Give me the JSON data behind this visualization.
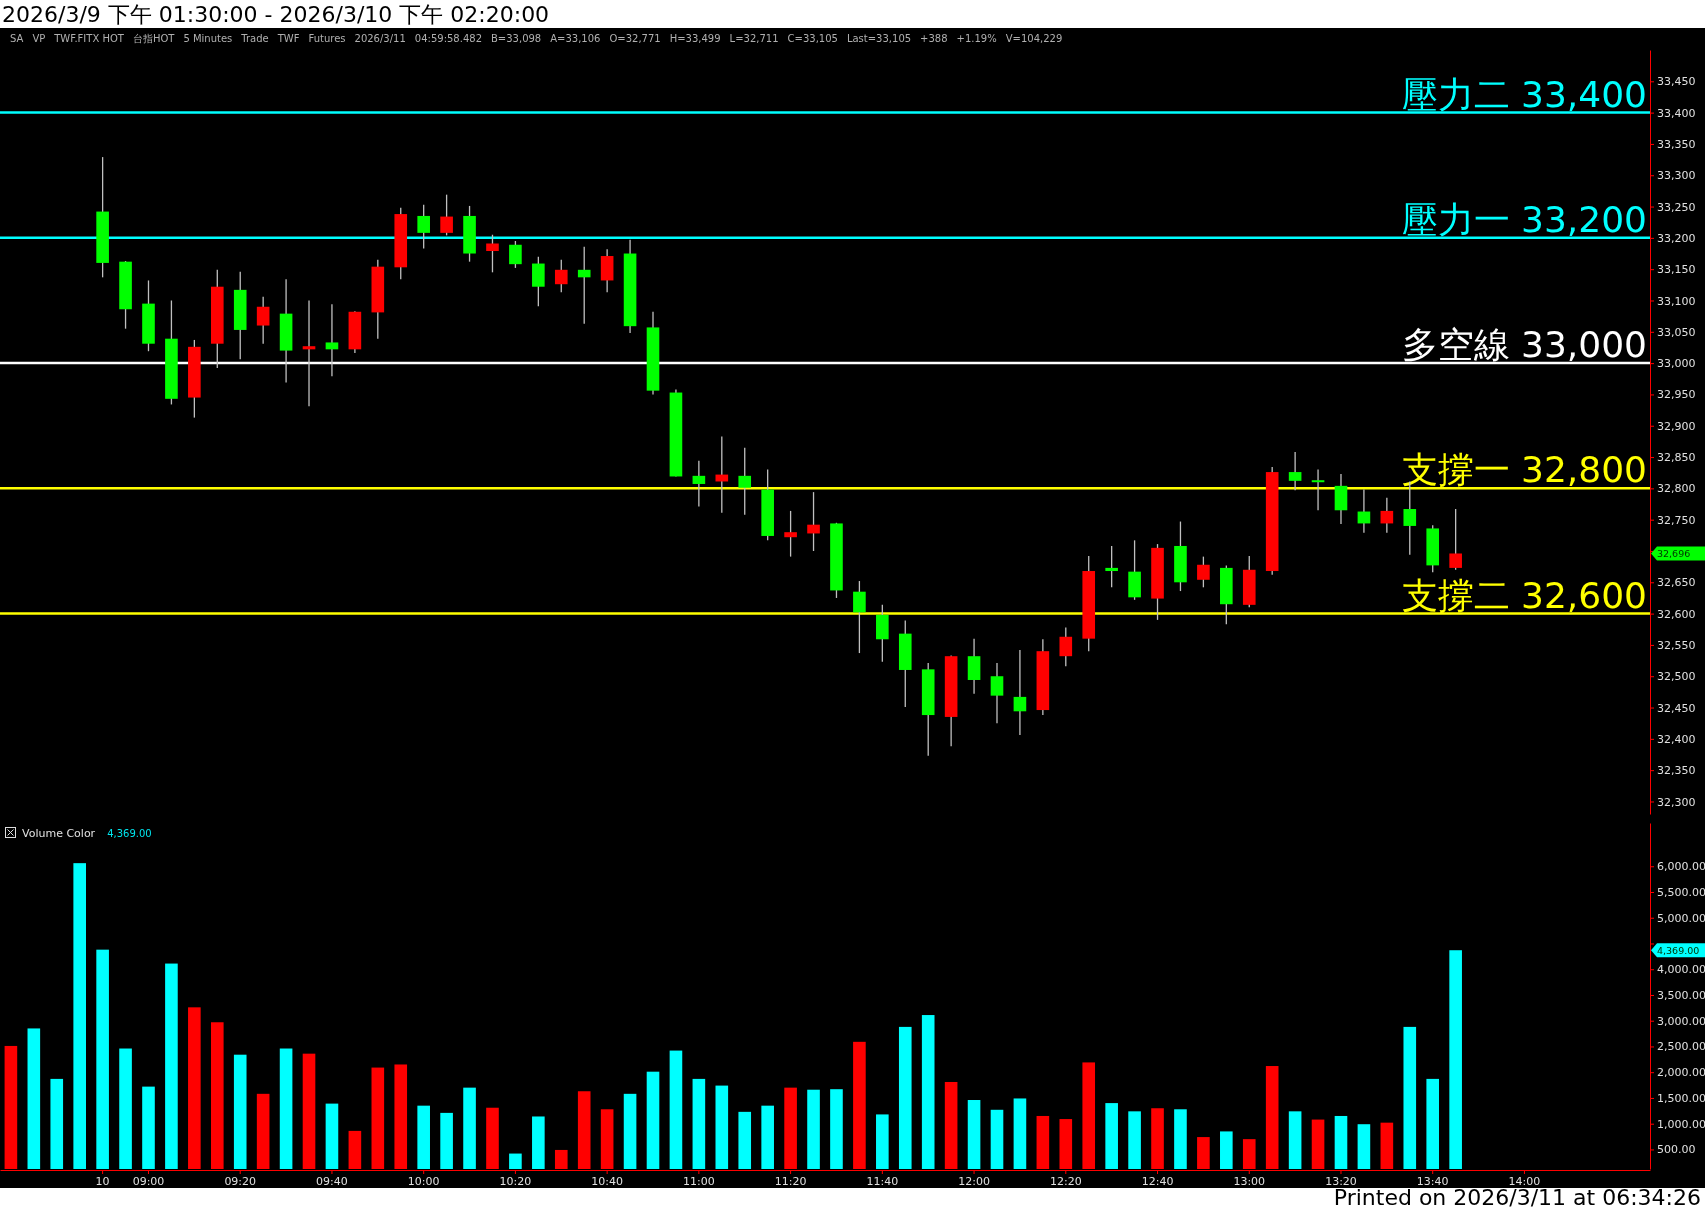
{
  "chart_data": [
    {
      "type": "candlestick",
      "title": "2026/3/9 下午 01:30:00 - 2026/3/10 下午 02:20:00",
      "annotations": [
        "SA",
        "VP",
        "TWF.FITX HOT",
        "台指HOT",
        "5 Minutes",
        "Trade",
        "TWF",
        "Futures",
        "2026/3/11",
        "04:59:58.482",
        "B=33,098",
        "A=33,106",
        "O=32,771",
        "H=33,499",
        "L=32,711",
        "C=33,105",
        "Last=33,105",
        "+388",
        "+1.19%",
        "V=104,229",
        "32,696"
      ],
      "categories": [
        null,
        null,
        null,
        null,
        null,
        null,
        null,
        null,
        null,
        null,
        null,
        null,
        null,
        null,
        null,
        null,
        null,
        null,
        null,
        null,
        null,
        null,
        null,
        null,
        null,
        null,
        null,
        null,
        null,
        null,
        null,
        null,
        null,
        null,
        null,
        null,
        null,
        null,
        null,
        null,
        null,
        null,
        null,
        null,
        null,
        null,
        null,
        null,
        null,
        null,
        null,
        null,
        null,
        null,
        null,
        null,
        null,
        null,
        null,
        null,
        null,
        null,
        null,
        null,
        null,
        null,
        null,
        null,
        null,
        null,
        null,
        null
      ],
      "ohlc": [
        null,
        null,
        null,
        null,
        [
          33242,
          33329,
          33137,
          33160
        ],
        [
          33162,
          33163,
          33055,
          33086
        ],
        [
          33095,
          33132,
          33019,
          33031
        ],
        [
          33039,
          33100,
          32934,
          32943
        ],
        [
          32945,
          33037,
          32913,
          33026
        ],
        [
          33031,
          33149,
          32992,
          33122
        ],
        [
          33117,
          33146,
          33006,
          33053
        ],
        [
          33060,
          33106,
          33031,
          33090
        ],
        [
          33079,
          33134,
          32969,
          33020
        ],
        [
          33022,
          33100,
          32931,
          33027
        ],
        [
          33033,
          33094,
          32979,
          33022
        ],
        [
          33022,
          33083,
          33016,
          33082
        ],
        [
          33081,
          33165,
          33039,
          33154
        ],
        [
          33153,
          33248,
          33134,
          33238
        ],
        [
          33235,
          33253,
          33183,
          33208
        ],
        [
          33208,
          33269,
          33204,
          33234
        ],
        [
          33235,
          33251,
          33162,
          33175
        ],
        [
          33179,
          33205,
          33145,
          33191
        ],
        [
          33189,
          33195,
          33152,
          33158
        ],
        [
          33159,
          33170,
          33091,
          33122
        ],
        [
          33126,
          33165,
          33113,
          33149
        ],
        [
          33149,
          33186,
          33063,
          33137
        ],
        [
          33132,
          33182,
          33113,
          33171
        ],
        [
          33175,
          33197,
          33048,
          33059
        ],
        [
          33057,
          33082,
          32950,
          32956
        ],
        [
          32953,
          32958,
          32819,
          32819
        ],
        [
          32820,
          32844,
          32771,
          32807
        ],
        [
          32811,
          32883,
          32761,
          32822
        ],
        [
          32820,
          32865,
          32758,
          32801
        ],
        [
          32798,
          32830,
          32717,
          32724
        ],
        [
          32722,
          32764,
          32691,
          32730
        ],
        [
          32728,
          32794,
          32700,
          32742
        ],
        [
          32744,
          32745,
          32625,
          32637
        ],
        [
          32635,
          32652,
          32537,
          32602
        ],
        [
          32598,
          32614,
          32523,
          32559
        ],
        [
          32568,
          32589,
          32451,
          32510
        ],
        [
          32511,
          32521,
          32373,
          32438
        ],
        [
          32435,
          32533,
          32388,
          32532
        ],
        [
          32532,
          32560,
          32472,
          32494
        ],
        [
          32500,
          32521,
          32425,
          32469
        ],
        [
          32467,
          32542,
          32406,
          32444
        ],
        [
          32446,
          32559,
          32438,
          32540
        ],
        [
          32532,
          32578,
          32516,
          32563
        ],
        [
          32560,
          32692,
          32540,
          32668
        ],
        [
          32673,
          32708,
          32642,
          32668
        ],
        [
          32667,
          32717,
          32622,
          32626
        ],
        [
          32624,
          32711,
          32590,
          32705
        ],
        [
          32708,
          32747,
          32636,
          32650
        ],
        [
          32654,
          32691,
          32642,
          32678
        ],
        [
          32673,
          32677,
          32583,
          32615
        ],
        [
          32614,
          32692,
          32610,
          32670
        ],
        [
          32668,
          32834,
          32662,
          32826
        ],
        [
          32826,
          32858,
          32797,
          32812
        ],
        [
          32813,
          32830,
          32765,
          32811
        ],
        [
          32804,
          32823,
          32743,
          32765
        ],
        [
          32763,
          32798,
          32729,
          32744
        ],
        [
          32744,
          32785,
          32729,
          32764
        ],
        [
          32767,
          32811,
          32694,
          32740
        ],
        [
          32736,
          32741,
          32666,
          32677
        ],
        [
          32673,
          32767,
          32670,
          32696
        ],
        null,
        null,
        null,
        null,
        null,
        null,
        null,
        null
      ],
      "colors": [
        null,
        null,
        null,
        null,
        "#00ff00",
        "#00ff00",
        "#00ff00",
        "#00ff00",
        "#ff0000",
        "#ff0000",
        "#00ff00",
        "#ff0000",
        "#00ff00",
        "#ff0000",
        "#00ff00",
        "#ff0000",
        "#ff0000",
        "#ff0000",
        "#00ff00",
        "#ff0000",
        "#00ff00",
        "#ff0000",
        "#00ff00",
        "#00ff00",
        "#ff0000",
        "#00ff00",
        "#ff0000",
        "#00ff00",
        "#00ff00",
        "#00ff00",
        "#00ff00",
        "#ff0000",
        "#00ff00",
        "#00ff00",
        "#ff0000",
        "#ff0000",
        "#00ff00",
        "#00ff00",
        "#00ff00",
        "#00ff00",
        "#00ff00",
        "#ff0000",
        "#00ff00",
        "#00ff00",
        "#00ff00",
        "#ff0000",
        "#ff0000",
        "#ff0000",
        "#00ff00",
        "#00ff00",
        "#ff0000",
        "#00ff00",
        "#ff0000",
        "#00ff00",
        "#ff0000",
        "#ff0000",
        "#00ff00",
        "#00ff00",
        "#00ff00",
        "#00ff00",
        "#ff0000",
        "#00ff00",
        "#00ff00",
        "#ff0000",
        null,
        null,
        null,
        null,
        null,
        null,
        null,
        null
      ],
      "ylim": [
        32280,
        33500
      ],
      "yticks": [
        {
          "value": 32300,
          "label": "32,300"
        },
        {
          "value": 32350,
          "label": "32,350"
        },
        {
          "value": 32400,
          "label": "32,400"
        },
        {
          "value": 32450,
          "label": "32,450"
        },
        {
          "value": 32500,
          "label": "32,500"
        },
        {
          "value": 32550,
          "label": "32,550"
        },
        {
          "value": 32600,
          "label": "32,600"
        },
        {
          "value": 32650,
          "label": "32,650"
        },
        {
          "value": 32700,
          "label": null
        },
        {
          "value": 32750,
          "label": "32,750"
        },
        {
          "value": 32800,
          "label": "32,800"
        },
        {
          "value": 32850,
          "label": "32,850"
        },
        {
          "value": 32900,
          "label": "32,900"
        },
        {
          "value": 32950,
          "label": "32,950"
        },
        {
          "value": 33000,
          "label": "33,000"
        },
        {
          "value": 33050,
          "label": "33,050"
        },
        {
          "value": 33100,
          "label": "33,100"
        },
        {
          "value": 33150,
          "label": "33,150"
        },
        {
          "value": 33200,
          "label": "33,200"
        },
        {
          "value": 33250,
          "label": "33,250"
        },
        {
          "value": 33300,
          "label": "33,300"
        },
        {
          "value": 33350,
          "label": "33,350"
        },
        {
          "value": 33400,
          "label": "33,400"
        },
        {
          "value": 33450,
          "label": "33,450"
        }
      ],
      "ref_lines": [
        {
          "axis": "y",
          "value": 33400,
          "label": "壓力二 33,400",
          "color": "#00ffff"
        },
        {
          "axis": "y",
          "value": 33200,
          "label": "壓力一 33,200",
          "color": "#00ffff"
        },
        {
          "axis": "y",
          "value": 33000,
          "label": "多空線 33,000",
          "color": "#ffffff"
        },
        {
          "axis": "y",
          "value": 32800,
          "label": "支撐一 32,800",
          "color": "#ffff00"
        },
        {
          "axis": "y",
          "value": 32600,
          "label": "支撐二 32,600",
          "color": "#ffff00"
        }
      ],
      "tick_labels": "y"
    },
    {
      "type": "bar",
      "title": "Volume Color",
      "annotations": [
        "4,369.00",
        "4,369.00",
        "Printed on 2026/3/11 at 06:34:26"
      ],
      "categories": [
        null,
        null,
        null,
        null,
        "10",
        null,
        "09:00",
        null,
        null,
        null,
        "09:20",
        null,
        null,
        null,
        "09:40",
        null,
        null,
        null,
        "10:00",
        null,
        null,
        null,
        "10:20",
        null,
        null,
        null,
        "10:40",
        null,
        null,
        null,
        "11:00",
        null,
        null,
        null,
        "11:20",
        null,
        null,
        null,
        "11:40",
        null,
        null,
        null,
        "12:00",
        null,
        null,
        null,
        "12:20",
        null,
        null,
        null,
        "12:40",
        null,
        null,
        null,
        "13:00",
        null,
        null,
        null,
        "13:20",
        null,
        null,
        null,
        "13:40",
        null,
        null,
        null,
        "14:00",
        null,
        null,
        null,
        null,
        null
      ],
      "values": [
        2510,
        2850,
        1870,
        6060,
        4380,
        2460,
        1720,
        4110,
        3260,
        2970,
        2340,
        1580,
        2460,
        2360,
        1390,
        860,
        2090,
        2150,
        1350,
        1210,
        1700,
        1310,
        420,
        1140,
        490,
        1630,
        1280,
        1580,
        2010,
        2420,
        1870,
        1740,
        1230,
        1350,
        1700,
        1660,
        1670,
        2590,
        1180,
        2880,
        3110,
        1810,
        1460,
        1270,
        1490,
        1150,
        1090,
        2190,
        1400,
        1240,
        1300,
        1280,
        740,
        850,
        700,
        2120,
        1240,
        1080,
        1150,
        990,
        1020,
        2880,
        1870,
        4369,
        null,
        null,
        null,
        null,
        null,
        null,
        null,
        null
      ],
      "colors": [
        "#ff0000",
        "#00ffff",
        "#00ffff",
        "#00ffff",
        "#00ffff",
        "#00ffff",
        "#00ffff",
        "#00ffff",
        "#ff0000",
        "#ff0000",
        "#00ffff",
        "#ff0000",
        "#00ffff",
        "#ff0000",
        "#00ffff",
        "#ff0000",
        "#ff0000",
        "#ff0000",
        "#00ffff",
        "#00ffff",
        "#00ffff",
        "#ff0000",
        "#00ffff",
        "#00ffff",
        "#ff0000",
        "#ff0000",
        "#ff0000",
        "#00ffff",
        "#00ffff",
        "#00ffff",
        "#00ffff",
        "#00ffff",
        "#00ffff",
        "#00ffff",
        "#ff0000",
        "#00ffff",
        "#00ffff",
        "#ff0000",
        "#00ffff",
        "#00ffff",
        "#00ffff",
        "#ff0000",
        "#00ffff",
        "#00ffff",
        "#00ffff",
        "#ff0000",
        "#ff0000",
        "#ff0000",
        "#00ffff",
        "#00ffff",
        "#ff0000",
        "#00ffff",
        "#ff0000",
        "#00ffff",
        "#ff0000",
        "#ff0000",
        "#00ffff",
        "#ff0000",
        "#00ffff",
        "#00ffff",
        "#ff0000",
        "#00ffff",
        "#00ffff",
        "#00ffff",
        null,
        null,
        null,
        null,
        null,
        null,
        null,
        null
      ],
      "ylim": [
        120,
        6840
      ],
      "yticks": [
        {
          "value": 500,
          "label": "500.00"
        },
        {
          "value": 1000,
          "label": "1,000.00"
        },
        {
          "value": 1500,
          "label": "1,500.00"
        },
        {
          "value": 2000,
          "label": "2,000.00"
        },
        {
          "value": 2500,
          "label": "2,500.00"
        },
        {
          "value": 3000,
          "label": "3,000.00"
        },
        {
          "value": 3500,
          "label": "3,500.00"
        },
        {
          "value": 4000,
          "label": "4,000.00"
        },
        {
          "value": 4500,
          "label": null
        },
        {
          "value": 5000,
          "label": "5,000.00"
        },
        {
          "value": 5500,
          "label": "5,500.00"
        },
        {
          "value": 6000,
          "label": "6,000.00"
        }
      ]
    }
  ]
}
